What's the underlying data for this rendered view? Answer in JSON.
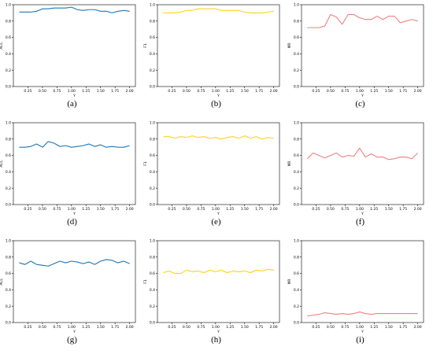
{
  "chart_data": [
    {
      "type": "line",
      "caption": "(a)",
      "ylabel": "ACC",
      "xlabel": "γ",
      "color": "#1f77b4",
      "ylim": [
        0,
        1.0
      ],
      "x_ticks": [
        "0.25",
        "0.50",
        "0.75",
        "1.00",
        "1.25",
        "1.50",
        "1.75",
        "2.00"
      ],
      "y_ticks": [
        "0.0",
        "0.2",
        "0.4",
        "0.6",
        "0.8",
        "1.0"
      ],
      "x": [
        0.1,
        0.2,
        0.3,
        0.4,
        0.5,
        0.6,
        0.7,
        0.8,
        0.9,
        1.0,
        1.1,
        1.2,
        1.3,
        1.4,
        1.5,
        1.6,
        1.7,
        1.8,
        1.9,
        2.0
      ],
      "y": [
        0.91,
        0.91,
        0.91,
        0.92,
        0.95,
        0.95,
        0.96,
        0.96,
        0.96,
        0.97,
        0.94,
        0.93,
        0.94,
        0.94,
        0.92,
        0.92,
        0.9,
        0.92,
        0.93,
        0.92
      ]
    },
    {
      "type": "line",
      "caption": "(b)",
      "ylabel": "F1",
      "xlabel": "γ",
      "color": "#ffd21f",
      "ylim": [
        0,
        1.0
      ],
      "x_ticks": [
        "0.25",
        "0.50",
        "0.75",
        "1.00",
        "1.25",
        "1.50",
        "1.75",
        "2.00"
      ],
      "y_ticks": [
        "0.0",
        "0.2",
        "0.4",
        "0.6",
        "0.8",
        "1.0"
      ],
      "x": [
        0.1,
        0.2,
        0.3,
        0.4,
        0.5,
        0.6,
        0.7,
        0.8,
        0.9,
        1.0,
        1.1,
        1.2,
        1.3,
        1.4,
        1.5,
        1.6,
        1.7,
        1.8,
        1.9,
        2.0
      ],
      "y": [
        0.9,
        0.9,
        0.9,
        0.91,
        0.93,
        0.93,
        0.95,
        0.95,
        0.95,
        0.95,
        0.93,
        0.93,
        0.93,
        0.93,
        0.91,
        0.9,
        0.9,
        0.9,
        0.91,
        0.92
      ]
    },
    {
      "type": "line",
      "caption": "(c)",
      "ylabel": "MR",
      "xlabel": "γ",
      "color": "#f07f7f",
      "ylim": [
        0,
        1.0
      ],
      "x_ticks": [
        "0.25",
        "0.50",
        "0.75",
        "1.00",
        "1.25",
        "1.50",
        "1.75",
        "2.00"
      ],
      "y_ticks": [
        "0.0",
        "0.2",
        "0.4",
        "0.6",
        "0.8",
        "1.0"
      ],
      "x": [
        0.1,
        0.2,
        0.3,
        0.4,
        0.5,
        0.6,
        0.7,
        0.8,
        0.9,
        1.0,
        1.1,
        1.2,
        1.3,
        1.4,
        1.5,
        1.6,
        1.7,
        1.8,
        1.9,
        2.0
      ],
      "y": [
        0.72,
        0.72,
        0.72,
        0.74,
        0.88,
        0.85,
        0.76,
        0.88,
        0.88,
        0.84,
        0.82,
        0.82,
        0.86,
        0.82,
        0.86,
        0.86,
        0.78,
        0.8,
        0.82,
        0.8
      ]
    },
    {
      "type": "line",
      "caption": "(d)",
      "ylabel": "ACC",
      "xlabel": "γ",
      "color": "#1f77b4",
      "ylim": [
        0,
        1.0
      ],
      "x_ticks": [
        "0.25",
        "0.50",
        "0.75",
        "1.00",
        "1.25",
        "1.50",
        "1.75",
        "2.00"
      ],
      "y_ticks": [
        "0.0",
        "0.2",
        "0.4",
        "0.6",
        "0.8",
        "1.0"
      ],
      "x": [
        0.1,
        0.2,
        0.3,
        0.4,
        0.5,
        0.6,
        0.7,
        0.8,
        0.9,
        1.0,
        1.1,
        1.2,
        1.3,
        1.4,
        1.5,
        1.6,
        1.7,
        1.8,
        1.9,
        2.0
      ],
      "y": [
        0.7,
        0.7,
        0.71,
        0.74,
        0.7,
        0.77,
        0.75,
        0.71,
        0.72,
        0.7,
        0.71,
        0.72,
        0.74,
        0.71,
        0.73,
        0.7,
        0.71,
        0.7,
        0.7,
        0.72
      ]
    },
    {
      "type": "line",
      "caption": "(e)",
      "ylabel": "F1",
      "xlabel": "γ",
      "color": "#ffd21f",
      "ylim": [
        0,
        1.0
      ],
      "x_ticks": [
        "0.25",
        "0.50",
        "0.75",
        "1.00",
        "1.25",
        "1.50",
        "1.75",
        "2.00"
      ],
      "y_ticks": [
        "0.0",
        "0.2",
        "0.4",
        "0.6",
        "0.8",
        "1.0"
      ],
      "x": [
        0.1,
        0.2,
        0.3,
        0.4,
        0.5,
        0.6,
        0.7,
        0.8,
        0.9,
        1.0,
        1.1,
        1.2,
        1.3,
        1.4,
        1.5,
        1.6,
        1.7,
        1.8,
        1.9,
        2.0
      ],
      "y": [
        0.83,
        0.83,
        0.81,
        0.83,
        0.82,
        0.84,
        0.82,
        0.83,
        0.81,
        0.82,
        0.8,
        0.82,
        0.83,
        0.81,
        0.84,
        0.81,
        0.83,
        0.8,
        0.82,
        0.81
      ]
    },
    {
      "type": "line",
      "caption": "(f)",
      "ylabel": "MR",
      "xlabel": "γ",
      "color": "#f07f7f",
      "ylim": [
        0,
        1.0
      ],
      "x_ticks": [
        "0.25",
        "0.50",
        "0.75",
        "1.00",
        "1.25",
        "1.50",
        "1.75",
        "2.00"
      ],
      "y_ticks": [
        "0.0",
        "0.2",
        "0.4",
        "0.6",
        "0.8",
        "1.0"
      ],
      "x": [
        0.1,
        0.2,
        0.3,
        0.4,
        0.5,
        0.6,
        0.7,
        0.8,
        0.9,
        1.0,
        1.1,
        1.2,
        1.3,
        1.4,
        1.5,
        1.6,
        1.7,
        1.8,
        1.9,
        2.0
      ],
      "y": [
        0.56,
        0.63,
        0.6,
        0.57,
        0.6,
        0.63,
        0.58,
        0.6,
        0.59,
        0.69,
        0.58,
        0.62,
        0.58,
        0.58,
        0.55,
        0.56,
        0.58,
        0.58,
        0.56,
        0.63
      ]
    },
    {
      "type": "line",
      "caption": "(g)",
      "ylabel": "ACC",
      "xlabel": "γ",
      "color": "#1f77b4",
      "ylim": [
        0,
        1.0
      ],
      "x_ticks": [
        "0.25",
        "0.50",
        "0.75",
        "1.00",
        "1.25",
        "1.50",
        "1.75",
        "2.00"
      ],
      "y_ticks": [
        "0.0",
        "0.2",
        "0.4",
        "0.6",
        "0.8",
        "1.0"
      ],
      "x": [
        0.1,
        0.2,
        0.3,
        0.4,
        0.5,
        0.6,
        0.7,
        0.8,
        0.9,
        1.0,
        1.1,
        1.2,
        1.3,
        1.4,
        1.5,
        1.6,
        1.7,
        1.8,
        1.9,
        2.0
      ],
      "y": [
        0.73,
        0.71,
        0.75,
        0.71,
        0.7,
        0.69,
        0.72,
        0.75,
        0.73,
        0.75,
        0.74,
        0.72,
        0.74,
        0.71,
        0.75,
        0.77,
        0.76,
        0.73,
        0.75,
        0.72
      ]
    },
    {
      "type": "line",
      "caption": "(h)",
      "ylabel": "F1",
      "xlabel": "γ",
      "color": "#ffd21f",
      "ylim": [
        0,
        1.0
      ],
      "x_ticks": [
        "0.25",
        "0.50",
        "0.75",
        "1.00",
        "1.25",
        "1.50",
        "1.75",
        "2.00"
      ],
      "y_ticks": [
        "0.0",
        "0.2",
        "0.4",
        "0.6",
        "0.8",
        "1.0"
      ],
      "x": [
        0.1,
        0.2,
        0.3,
        0.4,
        0.5,
        0.6,
        0.7,
        0.8,
        0.9,
        1.0,
        1.1,
        1.2,
        1.3,
        1.4,
        1.5,
        1.6,
        1.7,
        1.8,
        1.9,
        2.0
      ],
      "y": [
        0.61,
        0.63,
        0.6,
        0.6,
        0.64,
        0.62,
        0.63,
        0.61,
        0.64,
        0.62,
        0.64,
        0.61,
        0.63,
        0.62,
        0.63,
        0.61,
        0.64,
        0.63,
        0.65,
        0.64
      ]
    },
    {
      "type": "line",
      "caption": "(i)",
      "ylabel": "MR",
      "xlabel": "γ",
      "color": "#f07f7f",
      "ylim": [
        0,
        1.0
      ],
      "x_ticks": [
        "0.25",
        "0.50",
        "0.75",
        "1.00",
        "1.25",
        "1.50",
        "1.75",
        "2.00"
      ],
      "y_ticks": [
        "0.0",
        "0.2",
        "0.4",
        "0.6",
        "0.8",
        "1.0"
      ],
      "x": [
        0.1,
        0.2,
        0.3,
        0.4,
        0.5,
        0.6,
        0.7,
        0.8,
        0.9,
        1.0,
        1.1,
        1.2,
        1.3,
        1.4,
        1.5,
        1.6,
        1.7,
        1.8,
        1.9,
        2.0
      ],
      "y": [
        0.08,
        0.09,
        0.1,
        0.12,
        0.11,
        0.1,
        0.11,
        0.1,
        0.11,
        0.13,
        0.11,
        0.1,
        0.11,
        0.11,
        0.11,
        0.11,
        0.11,
        0.11,
        0.11,
        0.11
      ]
    }
  ]
}
